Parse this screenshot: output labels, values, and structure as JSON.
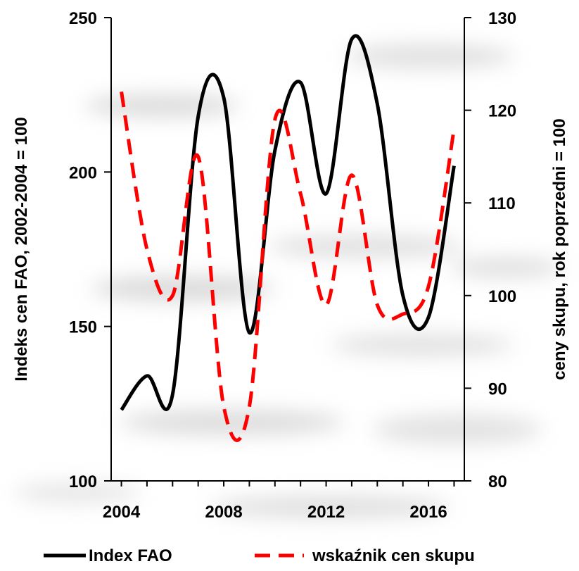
{
  "chart_data": {
    "type": "line",
    "x": [
      2004,
      2005,
      2006,
      2007,
      2008,
      2009,
      2010,
      2011,
      2012,
      2013,
      2014,
      2015,
      2016,
      2017
    ],
    "series": [
      {
        "name": "Index FAO",
        "axis": "left",
        "style": "solid",
        "color": "#000000",
        "values": [
          123,
          134,
          128,
          218,
          224,
          148,
          207,
          229,
          193,
          243,
          222,
          160,
          153,
          202
        ]
      },
      {
        "name": "wskaźnik cen skupu",
        "axis": "right",
        "style": "dashed",
        "color": "#ff0000",
        "values": [
          122,
          105,
          100,
          115,
          88,
          88,
          119,
          111,
          99,
          113,
          99,
          98,
          101,
          118
        ]
      }
    ],
    "ylabel_left": "Indeks cen FAO, 2002-2004 = 100",
    "ylabel_right": "ceny skupu, rok poprzedni = 100",
    "ylim_left": [
      100,
      250
    ],
    "ylim_right": [
      80,
      130
    ],
    "xlim": [
      2003.6,
      2017.4
    ],
    "x_tick_labels": [
      "2004",
      "2008",
      "2012",
      "2016"
    ],
    "left_tick_labels": [
      "100",
      "150",
      "200",
      "250"
    ],
    "right_tick_labels": [
      "80",
      "90",
      "100",
      "110",
      "120",
      "130"
    ],
    "grid": false,
    "legend_position": "bottom"
  }
}
